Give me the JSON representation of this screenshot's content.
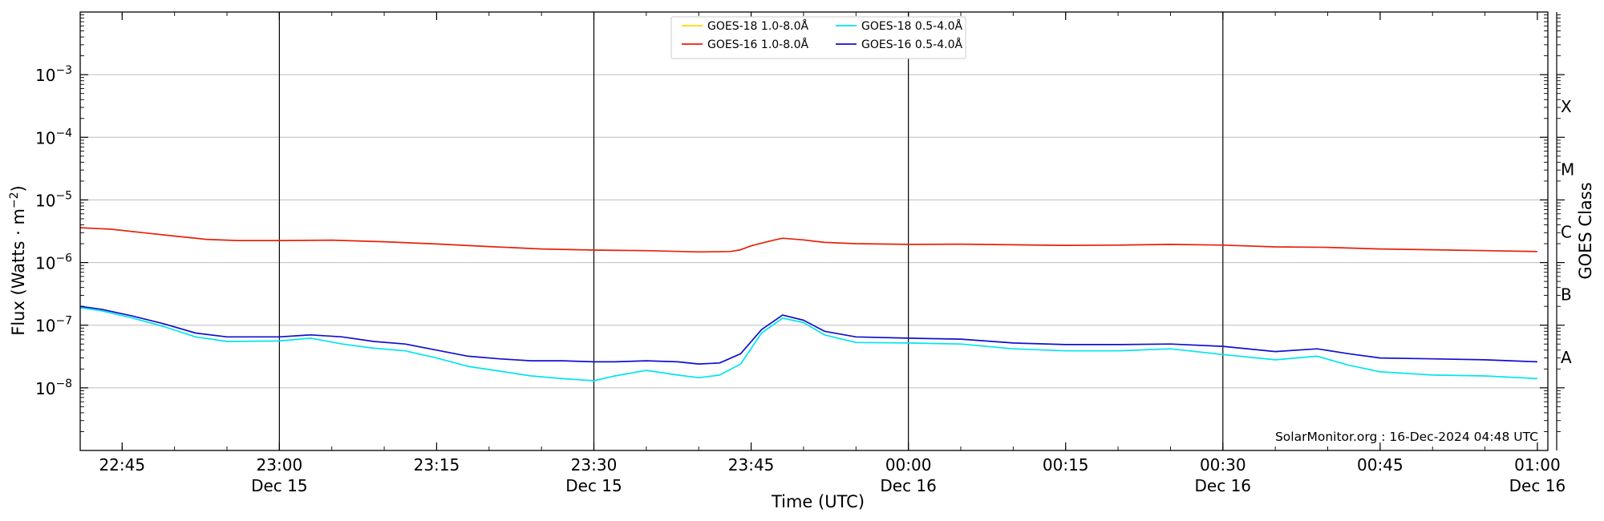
{
  "chart_data": {
    "type": "line",
    "title": "",
    "xlabel": "Time (UTC)",
    "ylabel_main": "Flux (Watts · m",
    "ylabel_sup": "−2",
    "ylabel_close": ")",
    "y2label": "GOES Class",
    "yscale": "log",
    "ylim": [
      1e-09,
      0.01
    ],
    "xlim": [
      "2024-12-15T22:41",
      "2024-12-16T01:01"
    ],
    "grid": true,
    "legend_position": "top-center",
    "credit": "SolarMonitor.org : 16-Dec-2024 04:48 UTC",
    "yticks": [
      {
        "value": 0.001,
        "base": "10",
        "exp": "−3"
      },
      {
        "value": 0.0001,
        "base": "10",
        "exp": "−4"
      },
      {
        "value": 1e-05,
        "base": "10",
        "exp": "−5"
      },
      {
        "value": 1e-06,
        "base": "10",
        "exp": "−6"
      },
      {
        "value": 1e-07,
        "base": "10",
        "exp": "−7"
      },
      {
        "value": 1e-08,
        "base": "10",
        "exp": "−8"
      }
    ],
    "goes_classes": [
      {
        "label": "X",
        "value": 0.0003162
      },
      {
        "label": "M",
        "value": 3.162e-05
      },
      {
        "label": "C",
        "value": 3.162e-06
      },
      {
        "label": "B",
        "value": 3.162e-07
      },
      {
        "label": "A",
        "value": 3.162e-08
      }
    ],
    "xticks": [
      {
        "time": "2024-12-15T22:45",
        "label": "22:45",
        "sub": ""
      },
      {
        "time": "2024-12-15T23:00",
        "label": "23:00",
        "sub": "Dec 15"
      },
      {
        "time": "2024-12-15T23:15",
        "label": "23:15",
        "sub": ""
      },
      {
        "time": "2024-12-15T23:30",
        "label": "23:30",
        "sub": "Dec 15"
      },
      {
        "time": "2024-12-15T23:45",
        "label": "23:45",
        "sub": ""
      },
      {
        "time": "2024-12-16T00:00",
        "label": "00:00",
        "sub": "Dec 16"
      },
      {
        "time": "2024-12-16T00:15",
        "label": "00:15",
        "sub": ""
      },
      {
        "time": "2024-12-16T00:30",
        "label": "00:30",
        "sub": "Dec 16"
      },
      {
        "time": "2024-12-16T00:45",
        "label": "00:45",
        "sub": ""
      },
      {
        "time": "2024-12-16T01:00",
        "label": "01:00",
        "sub": "Dec 16"
      }
    ],
    "vlines": [
      "2024-12-15T23:00",
      "2024-12-15T23:30",
      "2024-12-16T00:00",
      "2024-12-16T00:30"
    ],
    "series": [
      {
        "name": "GOES-18 1.0-8.0Å",
        "color": "#ffd700",
        "points": []
      },
      {
        "name": "GOES-16 1.0-8.0Å",
        "color": "#e8200a",
        "points": [
          [
            "2024-12-15T22:41",
            3.6e-06
          ],
          [
            "2024-12-15T22:44",
            3.4e-06
          ],
          [
            "2024-12-15T22:47",
            3e-06
          ],
          [
            "2024-12-15T22:50",
            2.65e-06
          ],
          [
            "2024-12-15T22:53",
            2.35e-06
          ],
          [
            "2024-12-15T22:56",
            2.25e-06
          ],
          [
            "2024-12-15T23:00",
            2.25e-06
          ],
          [
            "2024-12-15T23:05",
            2.28e-06
          ],
          [
            "2024-12-15T23:10",
            2.15e-06
          ],
          [
            "2024-12-15T23:15",
            1.98e-06
          ],
          [
            "2024-12-15T23:20",
            1.8e-06
          ],
          [
            "2024-12-15T23:25",
            1.65e-06
          ],
          [
            "2024-12-15T23:30",
            1.58e-06
          ],
          [
            "2024-12-15T23:35",
            1.55e-06
          ],
          [
            "2024-12-15T23:40",
            1.48e-06
          ],
          [
            "2024-12-15T23:43",
            1.5e-06
          ],
          [
            "2024-12-15T23:44",
            1.6e-06
          ],
          [
            "2024-12-15T23:45",
            1.85e-06
          ],
          [
            "2024-12-15T23:47",
            2.25e-06
          ],
          [
            "2024-12-15T23:48",
            2.45e-06
          ],
          [
            "2024-12-15T23:50",
            2.3e-06
          ],
          [
            "2024-12-15T23:52",
            2.1e-06
          ],
          [
            "2024-12-15T23:55",
            2e-06
          ],
          [
            "2024-12-16T00:00",
            1.95e-06
          ],
          [
            "2024-12-16T00:05",
            1.97e-06
          ],
          [
            "2024-12-16T00:10",
            1.92e-06
          ],
          [
            "2024-12-16T00:15",
            1.88e-06
          ],
          [
            "2024-12-16T00:20",
            1.9e-06
          ],
          [
            "2024-12-16T00:25",
            1.95e-06
          ],
          [
            "2024-12-16T00:30",
            1.9e-06
          ],
          [
            "2024-12-16T00:35",
            1.78e-06
          ],
          [
            "2024-12-16T00:40",
            1.75e-06
          ],
          [
            "2024-12-16T00:45",
            1.65e-06
          ],
          [
            "2024-12-16T00:50",
            1.6e-06
          ],
          [
            "2024-12-16T00:55",
            1.55e-06
          ],
          [
            "2024-12-16T01:00",
            1.5e-06
          ]
        ]
      },
      {
        "name": "GOES-18 0.5-4.0Å",
        "color": "#00e5ee",
        "points": [
          [
            "2024-12-15T22:41",
            1.9e-07
          ],
          [
            "2024-12-15T22:43",
            1.7e-07
          ],
          [
            "2024-12-15T22:46",
            1.3e-07
          ],
          [
            "2024-12-15T22:49",
            9.5e-08
          ],
          [
            "2024-12-15T22:52",
            6.5e-08
          ],
          [
            "2024-12-15T22:55",
            5.5e-08
          ],
          [
            "2024-12-15T23:00",
            5.6e-08
          ],
          [
            "2024-12-15T23:03",
            6.2e-08
          ],
          [
            "2024-12-15T23:06",
            5e-08
          ],
          [
            "2024-12-15T23:09",
            4.3e-08
          ],
          [
            "2024-12-15T23:12",
            3.9e-08
          ],
          [
            "2024-12-15T23:15",
            3e-08
          ],
          [
            "2024-12-15T23:18",
            2.2e-08
          ],
          [
            "2024-12-15T23:21",
            1.85e-08
          ],
          [
            "2024-12-15T23:24",
            1.55e-08
          ],
          [
            "2024-12-15T23:27",
            1.4e-08
          ],
          [
            "2024-12-15T23:30",
            1.3e-08
          ],
          [
            "2024-12-15T23:32",
            1.55e-08
          ],
          [
            "2024-12-15T23:35",
            1.9e-08
          ],
          [
            "2024-12-15T23:38",
            1.6e-08
          ],
          [
            "2024-12-15T23:40",
            1.45e-08
          ],
          [
            "2024-12-15T23:42",
            1.6e-08
          ],
          [
            "2024-12-15T23:44",
            2.4e-08
          ],
          [
            "2024-12-15T23:46",
            7.5e-08
          ],
          [
            "2024-12-15T23:48",
            1.3e-07
          ],
          [
            "2024-12-15T23:50",
            1.1e-07
          ],
          [
            "2024-12-15T23:52",
            7e-08
          ],
          [
            "2024-12-15T23:55",
            5.3e-08
          ],
          [
            "2024-12-16T00:00",
            5.2e-08
          ],
          [
            "2024-12-16T00:05",
            5e-08
          ],
          [
            "2024-12-16T00:10",
            4.2e-08
          ],
          [
            "2024-12-16T00:15",
            3.9e-08
          ],
          [
            "2024-12-16T00:20",
            3.9e-08
          ],
          [
            "2024-12-16T00:25",
            4.2e-08
          ],
          [
            "2024-12-16T00:30",
            3.4e-08
          ],
          [
            "2024-12-16T00:35",
            2.8e-08
          ],
          [
            "2024-12-16T00:39",
            3.2e-08
          ],
          [
            "2024-12-16T00:42",
            2.3e-08
          ],
          [
            "2024-12-16T00:45",
            1.8e-08
          ],
          [
            "2024-12-16T00:50",
            1.6e-08
          ],
          [
            "2024-12-16T00:55",
            1.55e-08
          ],
          [
            "2024-12-16T01:00",
            1.4e-08
          ]
        ]
      },
      {
        "name": "GOES-16 0.5-4.0Å",
        "color": "#1010cc",
        "points": [
          [
            "2024-12-15T22:41",
            2e-07
          ],
          [
            "2024-12-15T22:43",
            1.8e-07
          ],
          [
            "2024-12-15T22:46",
            1.4e-07
          ],
          [
            "2024-12-15T22:49",
            1.05e-07
          ],
          [
            "2024-12-15T22:52",
            7.5e-08
          ],
          [
            "2024-12-15T22:55",
            6.5e-08
          ],
          [
            "2024-12-15T23:00",
            6.5e-08
          ],
          [
            "2024-12-15T23:03",
            7e-08
          ],
          [
            "2024-12-15T23:06",
            6.5e-08
          ],
          [
            "2024-12-15T23:09",
            5.5e-08
          ],
          [
            "2024-12-15T23:12",
            5e-08
          ],
          [
            "2024-12-15T23:15",
            4e-08
          ],
          [
            "2024-12-15T23:18",
            3.2e-08
          ],
          [
            "2024-12-15T23:21",
            2.9e-08
          ],
          [
            "2024-12-15T23:24",
            2.7e-08
          ],
          [
            "2024-12-15T23:27",
            2.7e-08
          ],
          [
            "2024-12-15T23:30",
            2.6e-08
          ],
          [
            "2024-12-15T23:32",
            2.6e-08
          ],
          [
            "2024-12-15T23:35",
            2.7e-08
          ],
          [
            "2024-12-15T23:38",
            2.6e-08
          ],
          [
            "2024-12-15T23:40",
            2.4e-08
          ],
          [
            "2024-12-15T23:42",
            2.5e-08
          ],
          [
            "2024-12-15T23:44",
            3.5e-08
          ],
          [
            "2024-12-15T23:46",
            8.5e-08
          ],
          [
            "2024-12-15T23:48",
            1.45e-07
          ],
          [
            "2024-12-15T23:50",
            1.2e-07
          ],
          [
            "2024-12-15T23:52",
            8e-08
          ],
          [
            "2024-12-15T23:55",
            6.5e-08
          ],
          [
            "2024-12-16T00:00",
            6.2e-08
          ],
          [
            "2024-12-16T00:05",
            6e-08
          ],
          [
            "2024-12-16T00:10",
            5.2e-08
          ],
          [
            "2024-12-16T00:15",
            4.9e-08
          ],
          [
            "2024-12-16T00:20",
            4.9e-08
          ],
          [
            "2024-12-16T00:25",
            5e-08
          ],
          [
            "2024-12-16T00:30",
            4.6e-08
          ],
          [
            "2024-12-16T00:35",
            3.8e-08
          ],
          [
            "2024-12-16T00:39",
            4.2e-08
          ],
          [
            "2024-12-16T00:42",
            3.5e-08
          ],
          [
            "2024-12-16T00:45",
            3e-08
          ],
          [
            "2024-12-16T00:50",
            2.9e-08
          ],
          [
            "2024-12-16T00:55",
            2.8e-08
          ],
          [
            "2024-12-16T01:00",
            2.6e-08
          ]
        ]
      }
    ]
  }
}
